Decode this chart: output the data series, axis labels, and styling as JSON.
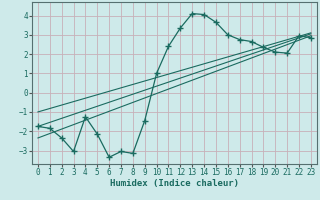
{
  "xlabel": "Humidex (Indice chaleur)",
  "bg_color": "#ceeaea",
  "grid_color": "#b0d0d0",
  "line_color": "#1a6b60",
  "xlim": [
    -0.5,
    23.5
  ],
  "ylim": [
    -3.7,
    4.7
  ],
  "xticks": [
    0,
    1,
    2,
    3,
    4,
    5,
    6,
    7,
    8,
    9,
    10,
    11,
    12,
    13,
    14,
    15,
    16,
    17,
    18,
    19,
    20,
    21,
    22,
    23
  ],
  "yticks": [
    -3,
    -2,
    -1,
    0,
    1,
    2,
    3,
    4
  ],
  "curve_x": [
    0,
    1,
    2,
    3,
    4,
    5,
    6,
    7,
    8,
    9,
    10,
    11,
    12,
    13,
    14,
    15,
    16,
    17,
    18,
    19,
    20,
    21,
    22,
    23
  ],
  "curve_y": [
    -1.75,
    -1.85,
    -2.35,
    -3.05,
    -1.25,
    -2.15,
    -3.35,
    -3.05,
    -3.15,
    -1.45,
    1.0,
    2.4,
    3.35,
    4.1,
    4.05,
    3.65,
    3.0,
    2.75,
    2.65,
    2.35,
    2.1,
    2.05,
    2.95,
    2.85
  ],
  "line1_x": [
    0,
    23
  ],
  "line1_y": [
    -1.75,
    3.05
  ],
  "line2_x": [
    0,
    23
  ],
  "line2_y": [
    -2.35,
    2.95
  ],
  "line3_x": [
    0,
    23
  ],
  "line3_y": [
    -1.0,
    3.1
  ]
}
